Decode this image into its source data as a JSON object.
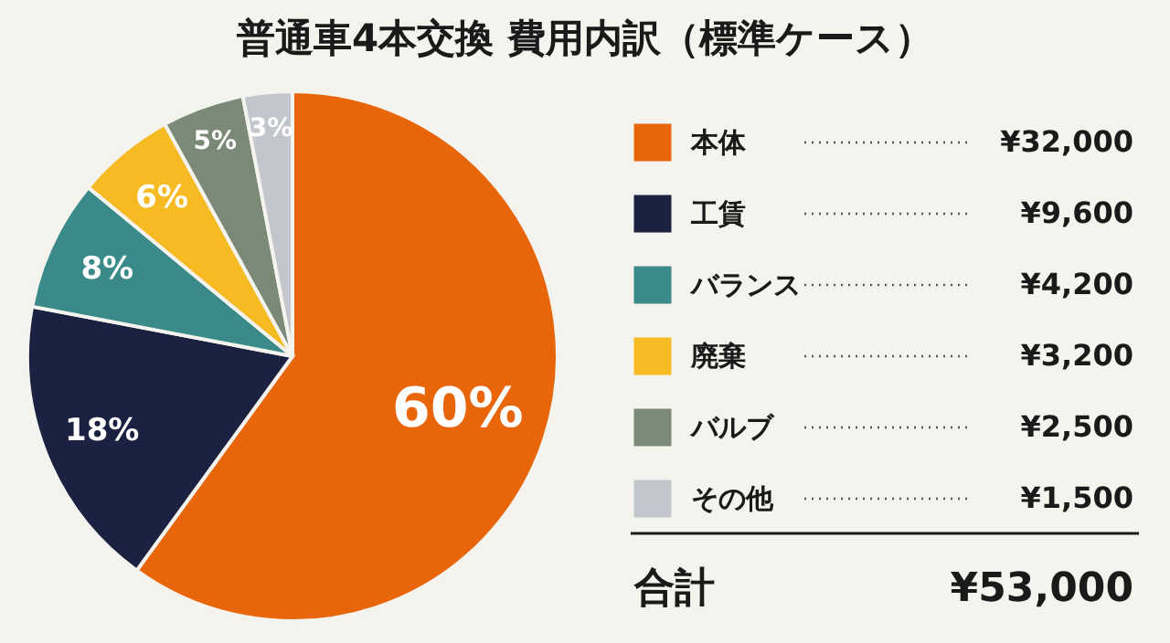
{
  "chart_data": {
    "type": "pie",
    "title": "普通車4本交換 費用内訳（標準ケース）",
    "categories": [
      "本体",
      "工賃",
      "バランス",
      "廃棄",
      "バルブ",
      "その他"
    ],
    "values": [
      60,
      18,
      8,
      6,
      5,
      3
    ],
    "colors": [
      "#e8650a",
      "#1b2140",
      "#3a8a8a",
      "#f6ba22",
      "#7b8a77",
      "#c3c6cd"
    ],
    "value_labels": [
      "60%",
      "18%",
      "8%",
      "6%",
      "5%",
      "3%"
    ],
    "legend": "right",
    "annotations": [
      {
        "text": "¥32,000",
        "x": "本体"
      },
      {
        "text": "¥9,600",
        "x": "工賃"
      },
      {
        "text": "¥4,200",
        "x": "バランス"
      },
      {
        "text": "¥3,200",
        "x": "廃棄"
      },
      {
        "text": "¥2,500",
        "x": "バルブ"
      },
      {
        "text": "¥1,500",
        "x": "その他"
      },
      "合計",
      "¥53,000"
    ]
  }
}
